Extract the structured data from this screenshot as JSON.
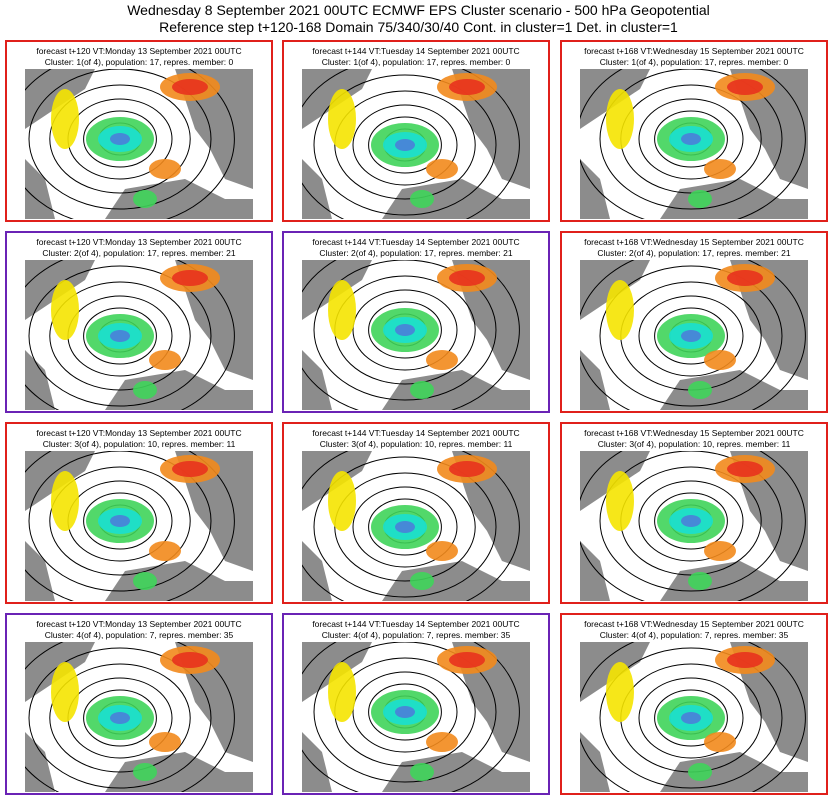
{
  "header": {
    "line1": "Wednesday 8 September 2021 00UTC ECMWF EPS Cluster scenario - 500 hPa Geopotential",
    "line2": "Reference step t+120-168 Domain 75/340/30/40 Cont. in cluster=1 Det. in cluster=1"
  },
  "colors": {
    "selected_border": "#e0201b",
    "other_border": "#6a23b5",
    "land": "#8c8c8c",
    "positive_strong": "#e8321e",
    "positive_mid": "#f28a1c",
    "positive_weak": "#f5e400",
    "negative_weak": "#3fd45a",
    "negative_mid": "#19e0d0",
    "negative_strong": "#4a7fd8"
  },
  "panels": [
    {
      "row": 1,
      "col": 1,
      "line1": "forecast t+120 VT:Monday 13 September 2021 00UTC",
      "line2": "Cluster: 1(of 4), population: 17, repres. member: 0",
      "border": "red"
    },
    {
      "row": 1,
      "col": 2,
      "line1": "forecast t+144 VT:Tuesday 14 September 2021 00UTC",
      "line2": "Cluster: 1(of 4), population: 17, repres. member: 0",
      "border": "red"
    },
    {
      "row": 1,
      "col": 3,
      "line1": "forecast t+168 VT:Wednesday 15 September 2021 00UTC",
      "line2": "Cluster: 1(of 4), population: 17, repres. member: 0",
      "border": "red"
    },
    {
      "row": 2,
      "col": 1,
      "line1": "forecast t+120 VT:Monday 13 September 2021 00UTC",
      "line2": "Cluster: 2(of 4), population: 17, repres. member: 21",
      "border": "purple"
    },
    {
      "row": 2,
      "col": 2,
      "line1": "forecast t+144 VT:Tuesday 14 September 2021 00UTC",
      "line2": "Cluster: 2(of 4), population: 17, repres. member: 21",
      "border": "purple"
    },
    {
      "row": 2,
      "col": 3,
      "line1": "forecast t+168 VT:Wednesday 15 September 2021 00UTC",
      "line2": "Cluster: 2(of 4), population: 17, repres. member: 21",
      "border": "red"
    },
    {
      "row": 3,
      "col": 1,
      "line1": "forecast t+120 VT:Monday 13 September 2021 00UTC",
      "line2": "Cluster: 3(of 4), population: 10, repres. member: 11",
      "border": "red"
    },
    {
      "row": 3,
      "col": 2,
      "line1": "forecast t+144 VT:Tuesday 14 September 2021 00UTC",
      "line2": "Cluster: 3(of 4), population: 10, repres. member: 11",
      "border": "red"
    },
    {
      "row": 3,
      "col": 3,
      "line1": "forecast t+168 VT:Wednesday 15 September 2021 00UTC",
      "line2": "Cluster: 3(of 4), population: 10, repres. member: 11",
      "border": "red"
    },
    {
      "row": 4,
      "col": 1,
      "line1": "forecast t+120 VT:Monday 13 September 2021 00UTC",
      "line2": "Cluster: 4(of 4), population: 7, repres. member: 35",
      "border": "purple"
    },
    {
      "row": 4,
      "col": 2,
      "line1": "forecast t+144 VT:Tuesday 14 September 2021 00UTC",
      "line2": "Cluster: 4(of 4), population: 7, repres. member: 35",
      "border": "purple"
    },
    {
      "row": 4,
      "col": 3,
      "line1": "forecast t+168 VT:Wednesday 15 September 2021 00UTC",
      "line2": "Cluster: 4(of 4), population: 7, repres. member: 35",
      "border": "red"
    }
  ]
}
